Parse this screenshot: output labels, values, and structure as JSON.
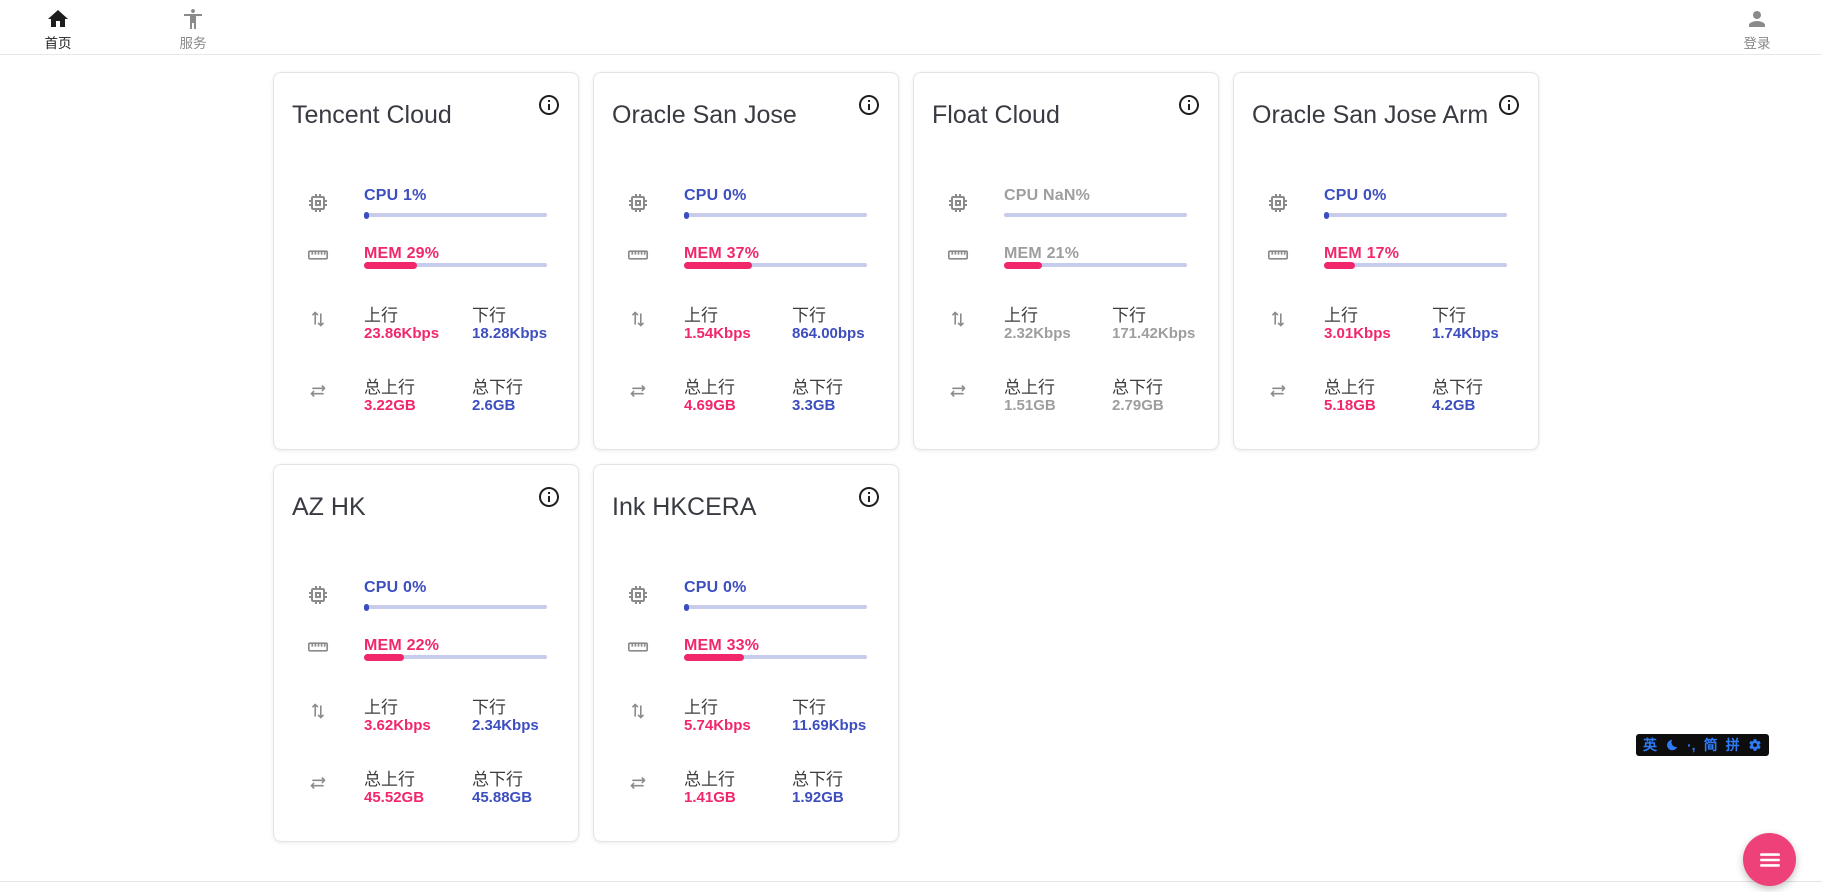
{
  "nav": {
    "home": "首页",
    "services": "服务",
    "login": "登录"
  },
  "labels": {
    "upload": "上行",
    "download": "下行",
    "total_upload": "总上行",
    "total_download": "总下行"
  },
  "servers": [
    {
      "name": "Tencent Cloud",
      "cpu": {
        "text": "CPU 1%",
        "pct": 1
      },
      "mem": {
        "text": "MEM 29%",
        "pct": 29
      },
      "net": {
        "up": "23.86Kbps",
        "down": "18.28Kbps"
      },
      "total": {
        "up": "3.22GB",
        "down": "2.6GB"
      },
      "offline": false
    },
    {
      "name": "Oracle San Jose",
      "cpu": {
        "text": "CPU 0%",
        "pct": 0
      },
      "mem": {
        "text": "MEM 37%",
        "pct": 37
      },
      "net": {
        "up": "1.54Kbps",
        "down": "864.00bps"
      },
      "total": {
        "up": "4.69GB",
        "down": "3.3GB"
      },
      "offline": false
    },
    {
      "name": "Float Cloud",
      "cpu": {
        "text": "CPU NaN%",
        "pct": null
      },
      "mem": {
        "text": "MEM 21%",
        "pct": 21
      },
      "net": {
        "up": "2.32Kbps",
        "down": "171.42Kbps"
      },
      "total": {
        "up": "1.51GB",
        "down": "2.79GB"
      },
      "offline": true
    },
    {
      "name": "Oracle San Jose Arm",
      "cpu": {
        "text": "CPU 0%",
        "pct": 0
      },
      "mem": {
        "text": "MEM 17%",
        "pct": 17
      },
      "net": {
        "up": "3.01Kbps",
        "down": "1.74Kbps"
      },
      "total": {
        "up": "5.18GB",
        "down": "4.2GB"
      },
      "offline": false
    },
    {
      "name": "AZ HK",
      "cpu": {
        "text": "CPU 0%",
        "pct": 0
      },
      "mem": {
        "text": "MEM 22%",
        "pct": 22
      },
      "net": {
        "up": "3.62Kbps",
        "down": "2.34Kbps"
      },
      "total": {
        "up": "45.52GB",
        "down": "45.88GB"
      },
      "offline": false
    },
    {
      "name": "Ink HKCERA",
      "cpu": {
        "text": "CPU 0%",
        "pct": 0
      },
      "mem": {
        "text": "MEM 33%",
        "pct": 33
      },
      "net": {
        "up": "5.74Kbps",
        "down": "11.69Kbps"
      },
      "total": {
        "up": "1.41GB",
        "down": "1.92GB"
      },
      "offline": false
    }
  ],
  "ime_toolbar": {
    "lang": "英",
    "punct": "·,",
    "simplified": "简",
    "pinyin": "拼",
    "icons": [
      "moon-icon",
      "gear-icon"
    ]
  },
  "colors": {
    "pink": "#F2276B",
    "blue": "#3D4EBF",
    "gray": "#9E9E9E",
    "track": "#C7CCEC",
    "fab": "#EF4179",
    "ime_blue": "#2E7BF6"
  }
}
